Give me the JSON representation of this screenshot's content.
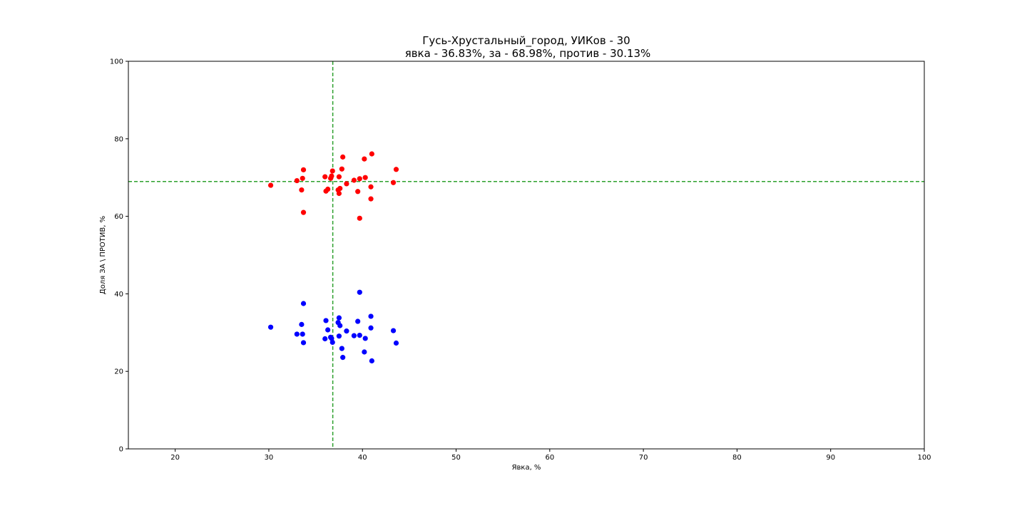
{
  "chart_data": {
    "type": "scatter",
    "title": "Гусь-Хрустальный_город, УИКов - 30",
    "subtitle": "явка - 36.83%, за - 68.98%, против - 30.13%",
    "xlabel": "Явка, %",
    "ylabel": "Доля ЗА \\ ПРОТИВ, %",
    "xlim": [
      15,
      100
    ],
    "ylim": [
      0,
      100
    ],
    "xticks": [
      20,
      30,
      40,
      50,
      60,
      70,
      80,
      90,
      100
    ],
    "yticks": [
      0,
      20,
      40,
      60,
      80,
      100
    ],
    "grid": false,
    "reference_lines": {
      "vertical_x": 36.83,
      "horizontal_y": 68.98,
      "color": "#2ca02c",
      "style": "dashed"
    },
    "series": [
      {
        "color": "#ff0000",
        "points": [
          [
            30.2,
            68.0
          ],
          [
            33.0,
            69.2
          ],
          [
            33.5,
            66.8
          ],
          [
            33.6,
            69.8
          ],
          [
            33.7,
            72.0
          ],
          [
            33.7,
            61.0
          ],
          [
            36.0,
            70.2
          ],
          [
            36.1,
            66.5
          ],
          [
            36.3,
            67.0
          ],
          [
            36.6,
            69.8
          ],
          [
            36.7,
            70.4
          ],
          [
            36.8,
            71.7
          ],
          [
            37.4,
            66.8
          ],
          [
            37.5,
            65.9
          ],
          [
            37.5,
            70.2
          ],
          [
            37.6,
            67.2
          ],
          [
            37.8,
            72.2
          ],
          [
            37.9,
            75.3
          ],
          [
            38.3,
            68.4
          ],
          [
            39.1,
            69.3
          ],
          [
            39.5,
            66.4
          ],
          [
            39.7,
            69.7
          ],
          [
            39.7,
            59.5
          ],
          [
            40.2,
            74.8
          ],
          [
            40.3,
            70.0
          ],
          [
            40.9,
            67.6
          ],
          [
            40.9,
            64.5
          ],
          [
            41.0,
            76.1
          ],
          [
            43.3,
            68.7
          ],
          [
            43.6,
            72.1
          ]
        ]
      },
      {
        "color": "#0000ff",
        "points": [
          [
            30.2,
            31.4
          ],
          [
            33.0,
            29.6
          ],
          [
            33.5,
            32.1
          ],
          [
            33.6,
            29.6
          ],
          [
            33.7,
            27.4
          ],
          [
            33.7,
            37.5
          ],
          [
            36.0,
            28.4
          ],
          [
            36.1,
            33.1
          ],
          [
            36.3,
            30.7
          ],
          [
            36.6,
            28.8
          ],
          [
            36.7,
            28.5
          ],
          [
            36.8,
            27.5
          ],
          [
            37.4,
            32.6
          ],
          [
            37.5,
            33.8
          ],
          [
            37.5,
            29.1
          ],
          [
            37.6,
            31.8
          ],
          [
            37.8,
            25.9
          ],
          [
            37.9,
            23.6
          ],
          [
            38.3,
            30.4
          ],
          [
            39.1,
            29.2
          ],
          [
            39.5,
            32.9
          ],
          [
            39.7,
            29.3
          ],
          [
            39.7,
            40.4
          ],
          [
            40.2,
            25.0
          ],
          [
            40.3,
            28.5
          ],
          [
            40.9,
            31.2
          ],
          [
            40.9,
            34.2
          ],
          [
            41.0,
            22.7
          ],
          [
            43.3,
            30.5
          ],
          [
            43.6,
            27.3
          ]
        ]
      }
    ]
  }
}
